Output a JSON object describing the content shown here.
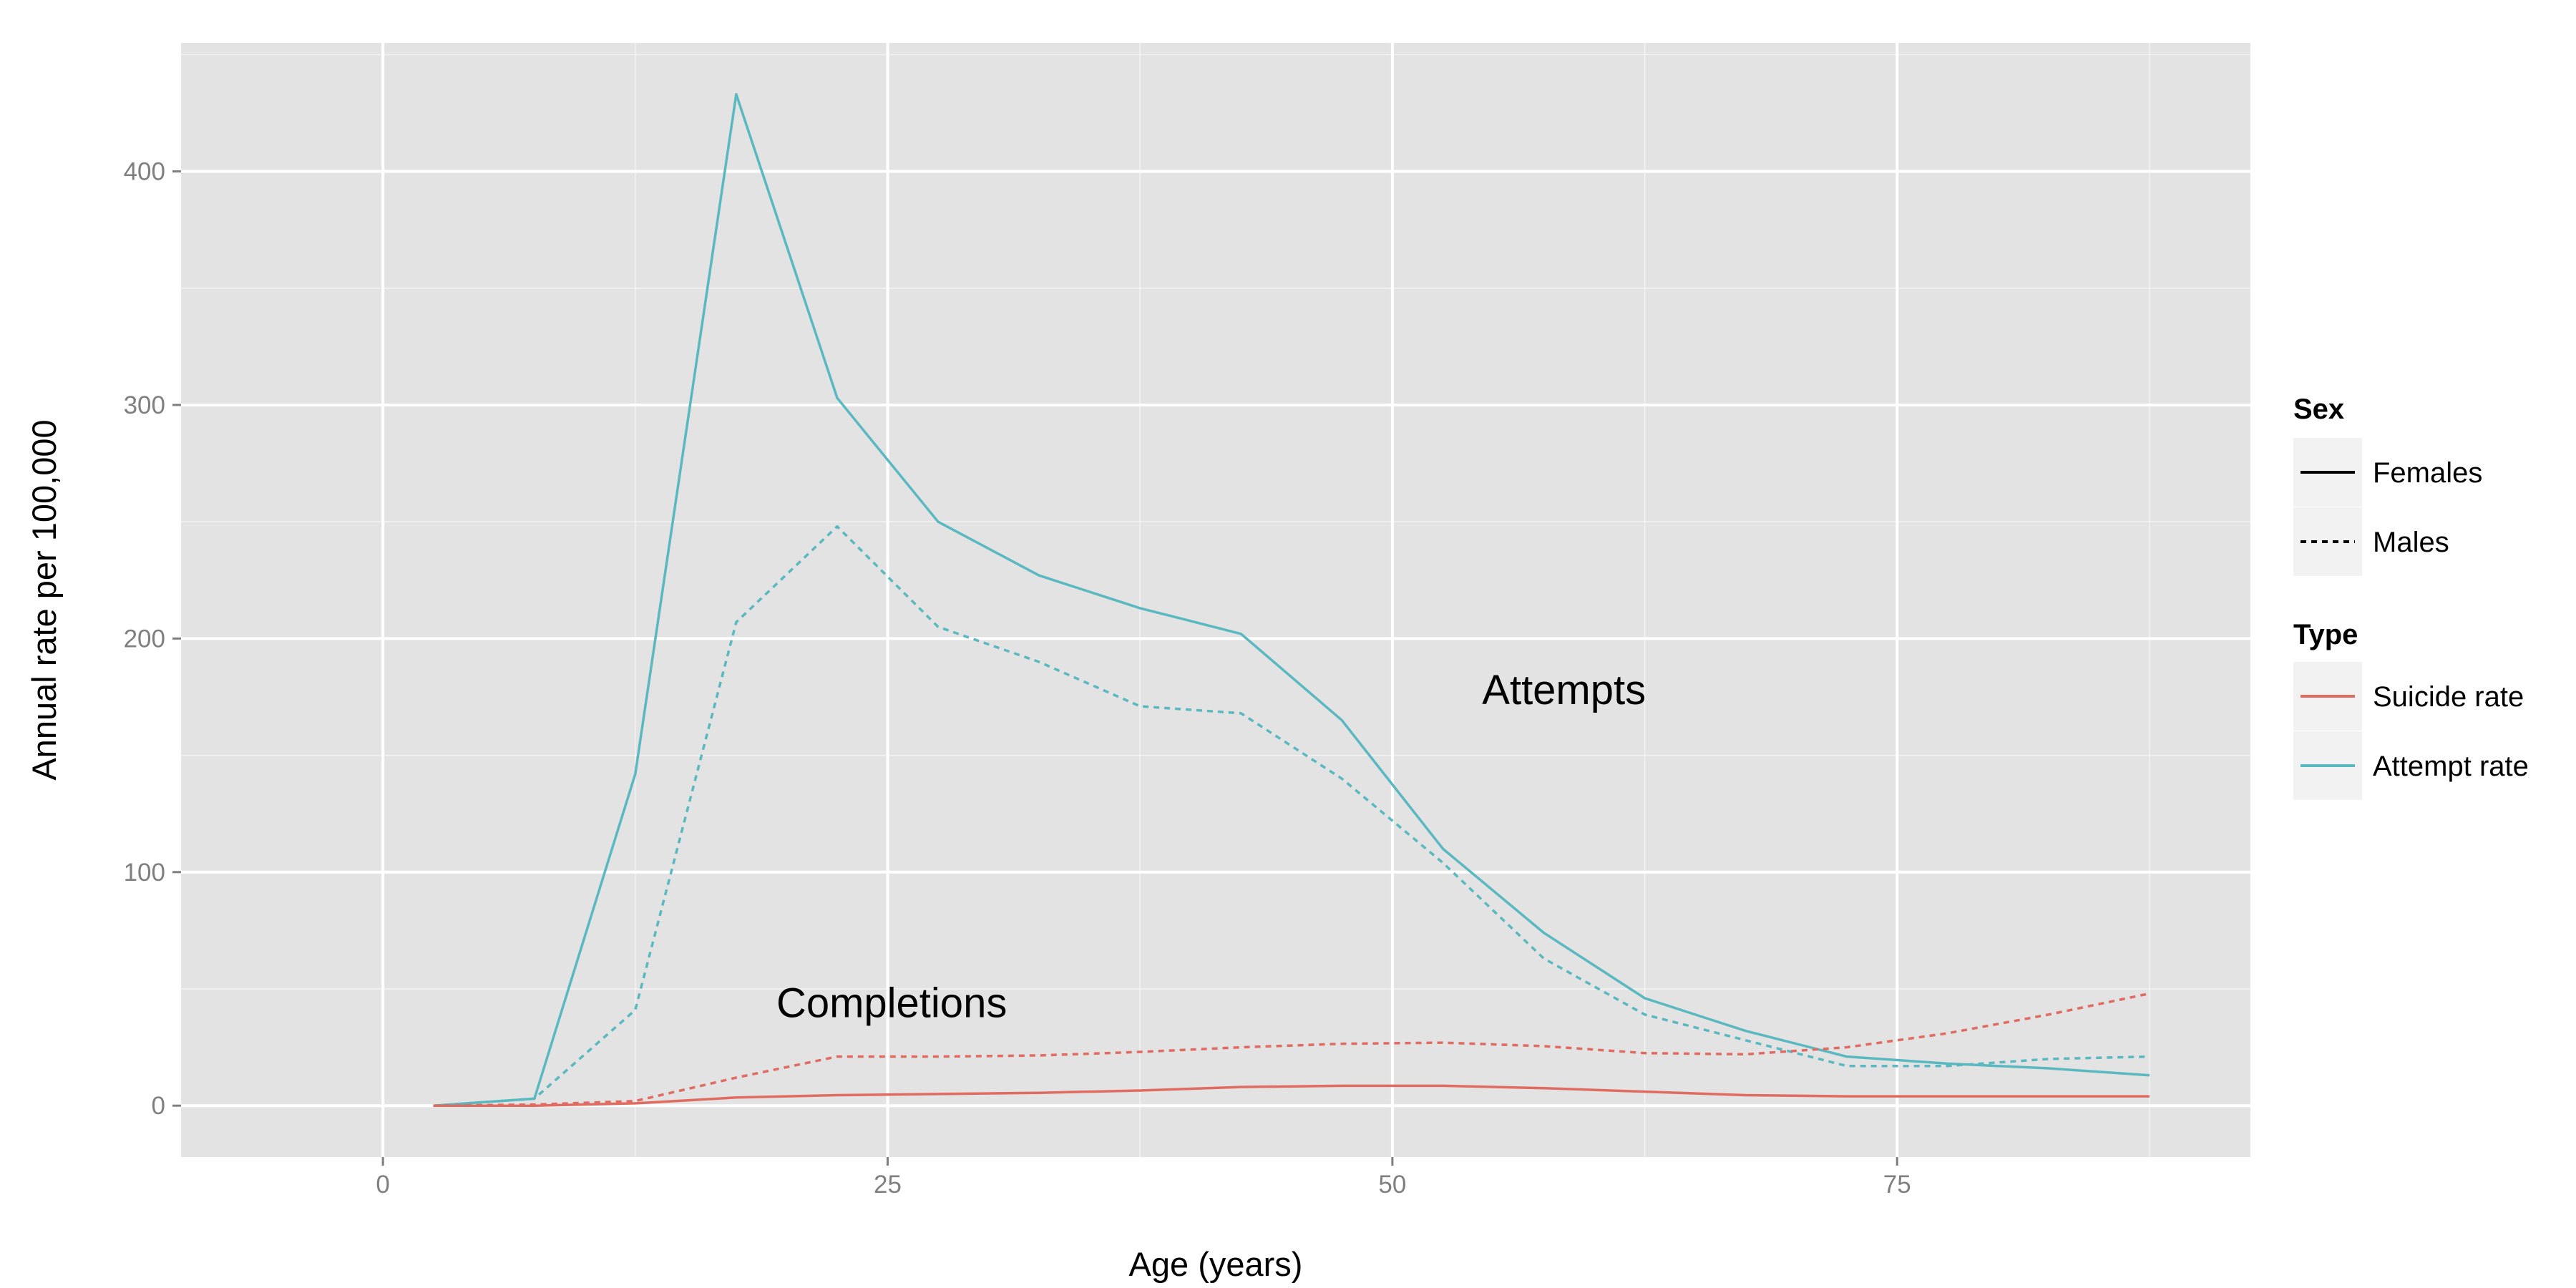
{
  "chart_data": {
    "type": "line",
    "xlabel": "Age (years)",
    "ylabel": "Annual rate per 100,000",
    "xlim": [
      -10,
      92.5
    ],
    "ylim": [
      -22,
      455
    ],
    "xticks": [
      0,
      25,
      50,
      75
    ],
    "yticks": [
      0,
      100,
      200,
      300,
      400
    ],
    "grid": true,
    "background": "#e3e3e3",
    "gridline_color": "#ffffff",
    "legend_position": "right",
    "legend": {
      "sex": {
        "title": "Sex",
        "items": [
          {
            "label": "Females",
            "linestyle": "solid"
          },
          {
            "label": "Males",
            "linestyle": "dashed"
          }
        ]
      },
      "type": {
        "title": "Type",
        "items": [
          {
            "label": "Suicide rate",
            "color": "#e06b61"
          },
          {
            "label": "Attempt rate",
            "color": "#5ab8c0"
          }
        ]
      }
    },
    "annotations": [
      {
        "text": "Attempts",
        "x": 58.5,
        "y": 178
      },
      {
        "text": "Completions",
        "x": 25.2,
        "y": 44
      }
    ],
    "x": [
      2.5,
      7.5,
      12.5,
      17.5,
      22.5,
      27.5,
      32.5,
      37.5,
      42.5,
      47.5,
      52.5,
      57.5,
      62.5,
      67.5,
      72.5,
      77.5,
      82.5,
      87.5
    ],
    "series": [
      {
        "type": "Attempt rate",
        "sex": "Females",
        "color": "#5ab8c0",
        "linestyle": "solid",
        "values": [
          0,
          3,
          142,
          433,
          303,
          250,
          227,
          213,
          202,
          165,
          110,
          74,
          46,
          32,
          21,
          18,
          16,
          13
        ]
      },
      {
        "type": "Attempt rate",
        "sex": "Males",
        "color": "#5ab8c0",
        "linestyle": "dashed",
        "values": [
          0,
          3,
          41,
          207,
          248,
          205,
          190,
          171,
          168,
          140,
          104,
          63,
          39,
          28,
          17,
          17,
          20,
          21
        ]
      },
      {
        "type": "Suicide rate",
        "sex": "Females",
        "color": "#e06b61",
        "linestyle": "solid",
        "values": [
          0,
          0,
          1,
          3.5,
          4.5,
          5,
          5.5,
          6.5,
          8,
          8.5,
          8.5,
          7.5,
          6,
          4.5,
          4,
          4,
          4,
          4
        ]
      },
      {
        "type": "Suicide rate",
        "sex": "Males",
        "color": "#e06b61",
        "linestyle": "dashed",
        "values": [
          0,
          0.5,
          2,
          12,
          21,
          21,
          21.5,
          23,
          25,
          26.5,
          27,
          25.5,
          22.5,
          22,
          25,
          31,
          39,
          48
        ]
      }
    ]
  }
}
